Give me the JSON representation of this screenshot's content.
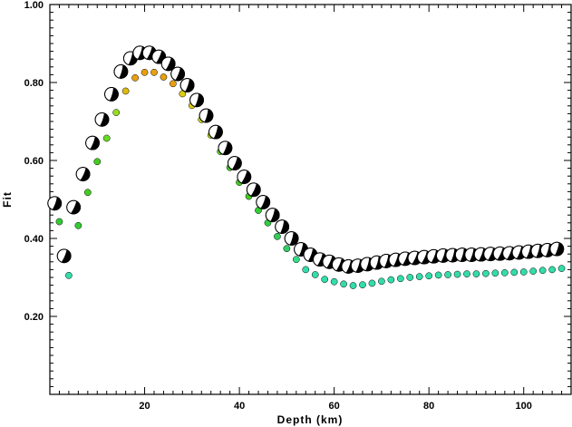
{
  "chart_data": {
    "type": "scatter",
    "title": "",
    "xlabel": "Depth (km)",
    "ylabel": "Fit",
    "xlim": [
      0,
      110
    ],
    "ylim": [
      0,
      1
    ],
    "x_ticks": [
      20,
      40,
      60,
      80,
      100
    ],
    "x_tick_labels": [
      "20",
      "40",
      "60",
      "80",
      "100"
    ],
    "y_ticks": [
      0.2,
      0.4,
      0.6,
      0.8,
      1.0
    ],
    "y_tick_labels": [
      "0.20",
      "0.40",
      "0.60",
      "0.80",
      "1.00"
    ],
    "grid": false,
    "series": [
      {
        "marker": "mechanism",
        "x": [
          1,
          3,
          5,
          7,
          9,
          11,
          13,
          15,
          17,
          19,
          21,
          23,
          25,
          27,
          29,
          31,
          33,
          35,
          37,
          39,
          41,
          43,
          45,
          47,
          49,
          51,
          53,
          55,
          57,
          59,
          61,
          63,
          65,
          67,
          69,
          71,
          73,
          75,
          77,
          79,
          81,
          83,
          85,
          87,
          89,
          91,
          93,
          95,
          97,
          99,
          101,
          103,
          105,
          107
        ],
        "values": [
          0.49,
          0.355,
          0.48,
          0.565,
          0.645,
          0.705,
          0.77,
          0.828,
          0.862,
          0.876,
          0.876,
          0.866,
          0.848,
          0.822,
          0.793,
          0.755,
          0.715,
          0.673,
          0.632,
          0.593,
          0.558,
          0.525,
          0.493,
          0.46,
          0.43,
          0.4,
          0.372,
          0.358,
          0.346,
          0.34,
          0.333,
          0.328,
          0.33,
          0.334,
          0.338,
          0.342,
          0.345,
          0.348,
          0.35,
          0.352,
          0.354,
          0.356,
          0.357,
          0.358,
          0.358,
          0.359,
          0.36,
          0.361,
          0.362,
          0.364,
          0.366,
          0.368,
          0.37,
          0.373
        ]
      },
      {
        "marker": "dot",
        "x": [
          2,
          4,
          6,
          8,
          10,
          12,
          14,
          16,
          18,
          20,
          22,
          24,
          26,
          28,
          30,
          32,
          34,
          36,
          38,
          40,
          42,
          44,
          46,
          48,
          50,
          52,
          54,
          56,
          58,
          60,
          62,
          64,
          66,
          68,
          70,
          72,
          74,
          76,
          78,
          80,
          82,
          84,
          86,
          88,
          90,
          92,
          94,
          96,
          98,
          100,
          102,
          104,
          106,
          108
        ],
        "values": [
          0.443,
          0.305,
          0.433,
          0.518,
          0.597,
          0.657,
          0.723,
          0.778,
          0.812,
          0.826,
          0.826,
          0.814,
          0.797,
          0.771,
          0.741,
          0.705,
          0.665,
          0.623,
          0.582,
          0.544,
          0.508,
          0.472,
          0.44,
          0.405,
          0.374,
          0.346,
          0.32,
          0.307,
          0.295,
          0.289,
          0.283,
          0.279,
          0.281,
          0.285,
          0.29,
          0.294,
          0.297,
          0.3,
          0.302,
          0.304,
          0.306,
          0.307,
          0.308,
          0.309,
          0.309,
          0.31,
          0.311,
          0.312,
          0.313,
          0.314,
          0.316,
          0.318,
          0.32,
          0.323
        ],
        "colors": [
          "#33cc33",
          "#33ddaa",
          "#33cc33",
          "#44cc22",
          "#44cc22",
          "#66dd22",
          "#99dd22",
          "#ddbb11",
          "#e8a010",
          "#e8a010",
          "#e8a010",
          "#e8a010",
          "#e8a010",
          "#ddcc11",
          "#ddcc11",
          "#ccdd11",
          "#aadd11",
          "#66dd22",
          "#44cc22",
          "#44cc22",
          "#44cc22",
          "#33cc33",
          "#33cc44",
          "#33cc55",
          "#33cc66",
          "#33dd88",
          "#33ddaa",
          "#33ddaa",
          "#33ddaa",
          "#33ddaa",
          "#33ddaa",
          "#33ddaa",
          "#33ddaa",
          "#33ddaa",
          "#33ddaa",
          "#33ddaa",
          "#33ddaa",
          "#33ddaa",
          "#33ddaa",
          "#33ddaa",
          "#33ddaa",
          "#33ddaa",
          "#33ddaa",
          "#33ddaa",
          "#33ddaa",
          "#33ddaa",
          "#33ddaa",
          "#33ddaa",
          "#33ddaa",
          "#33ddaa",
          "#33ddaa",
          "#33ddaa",
          "#33ddaa",
          "#33ddaa"
        ]
      }
    ]
  }
}
